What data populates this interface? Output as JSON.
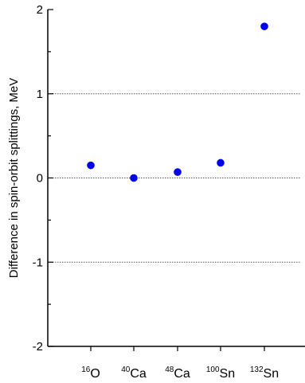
{
  "chart_data": {
    "type": "scatter",
    "categories": [
      {
        "sup": "16",
        "base": "O"
      },
      {
        "sup": "40",
        "base": "Ca"
      },
      {
        "sup": "48",
        "base": "Ca"
      },
      {
        "sup": "100",
        "base": "Sn"
      },
      {
        "sup": "132",
        "base": "Sn"
      }
    ],
    "values": [
      0.15,
      0.0,
      0.07,
      0.18,
      1.8
    ],
    "ylabel": "Difference in spin-orbit splittings, MeV",
    "xlabel": "",
    "ylim": [
      -2,
      2
    ],
    "yticks": [
      "-2",
      "-1",
      "0",
      "1",
      "2"
    ],
    "gridlines_at": [
      -1,
      0,
      1
    ],
    "grid": "dotted horizontal at -1, 0, 1",
    "marker_color": "#0000ee",
    "axis_color": "#000000",
    "grid_color": "#555555"
  }
}
